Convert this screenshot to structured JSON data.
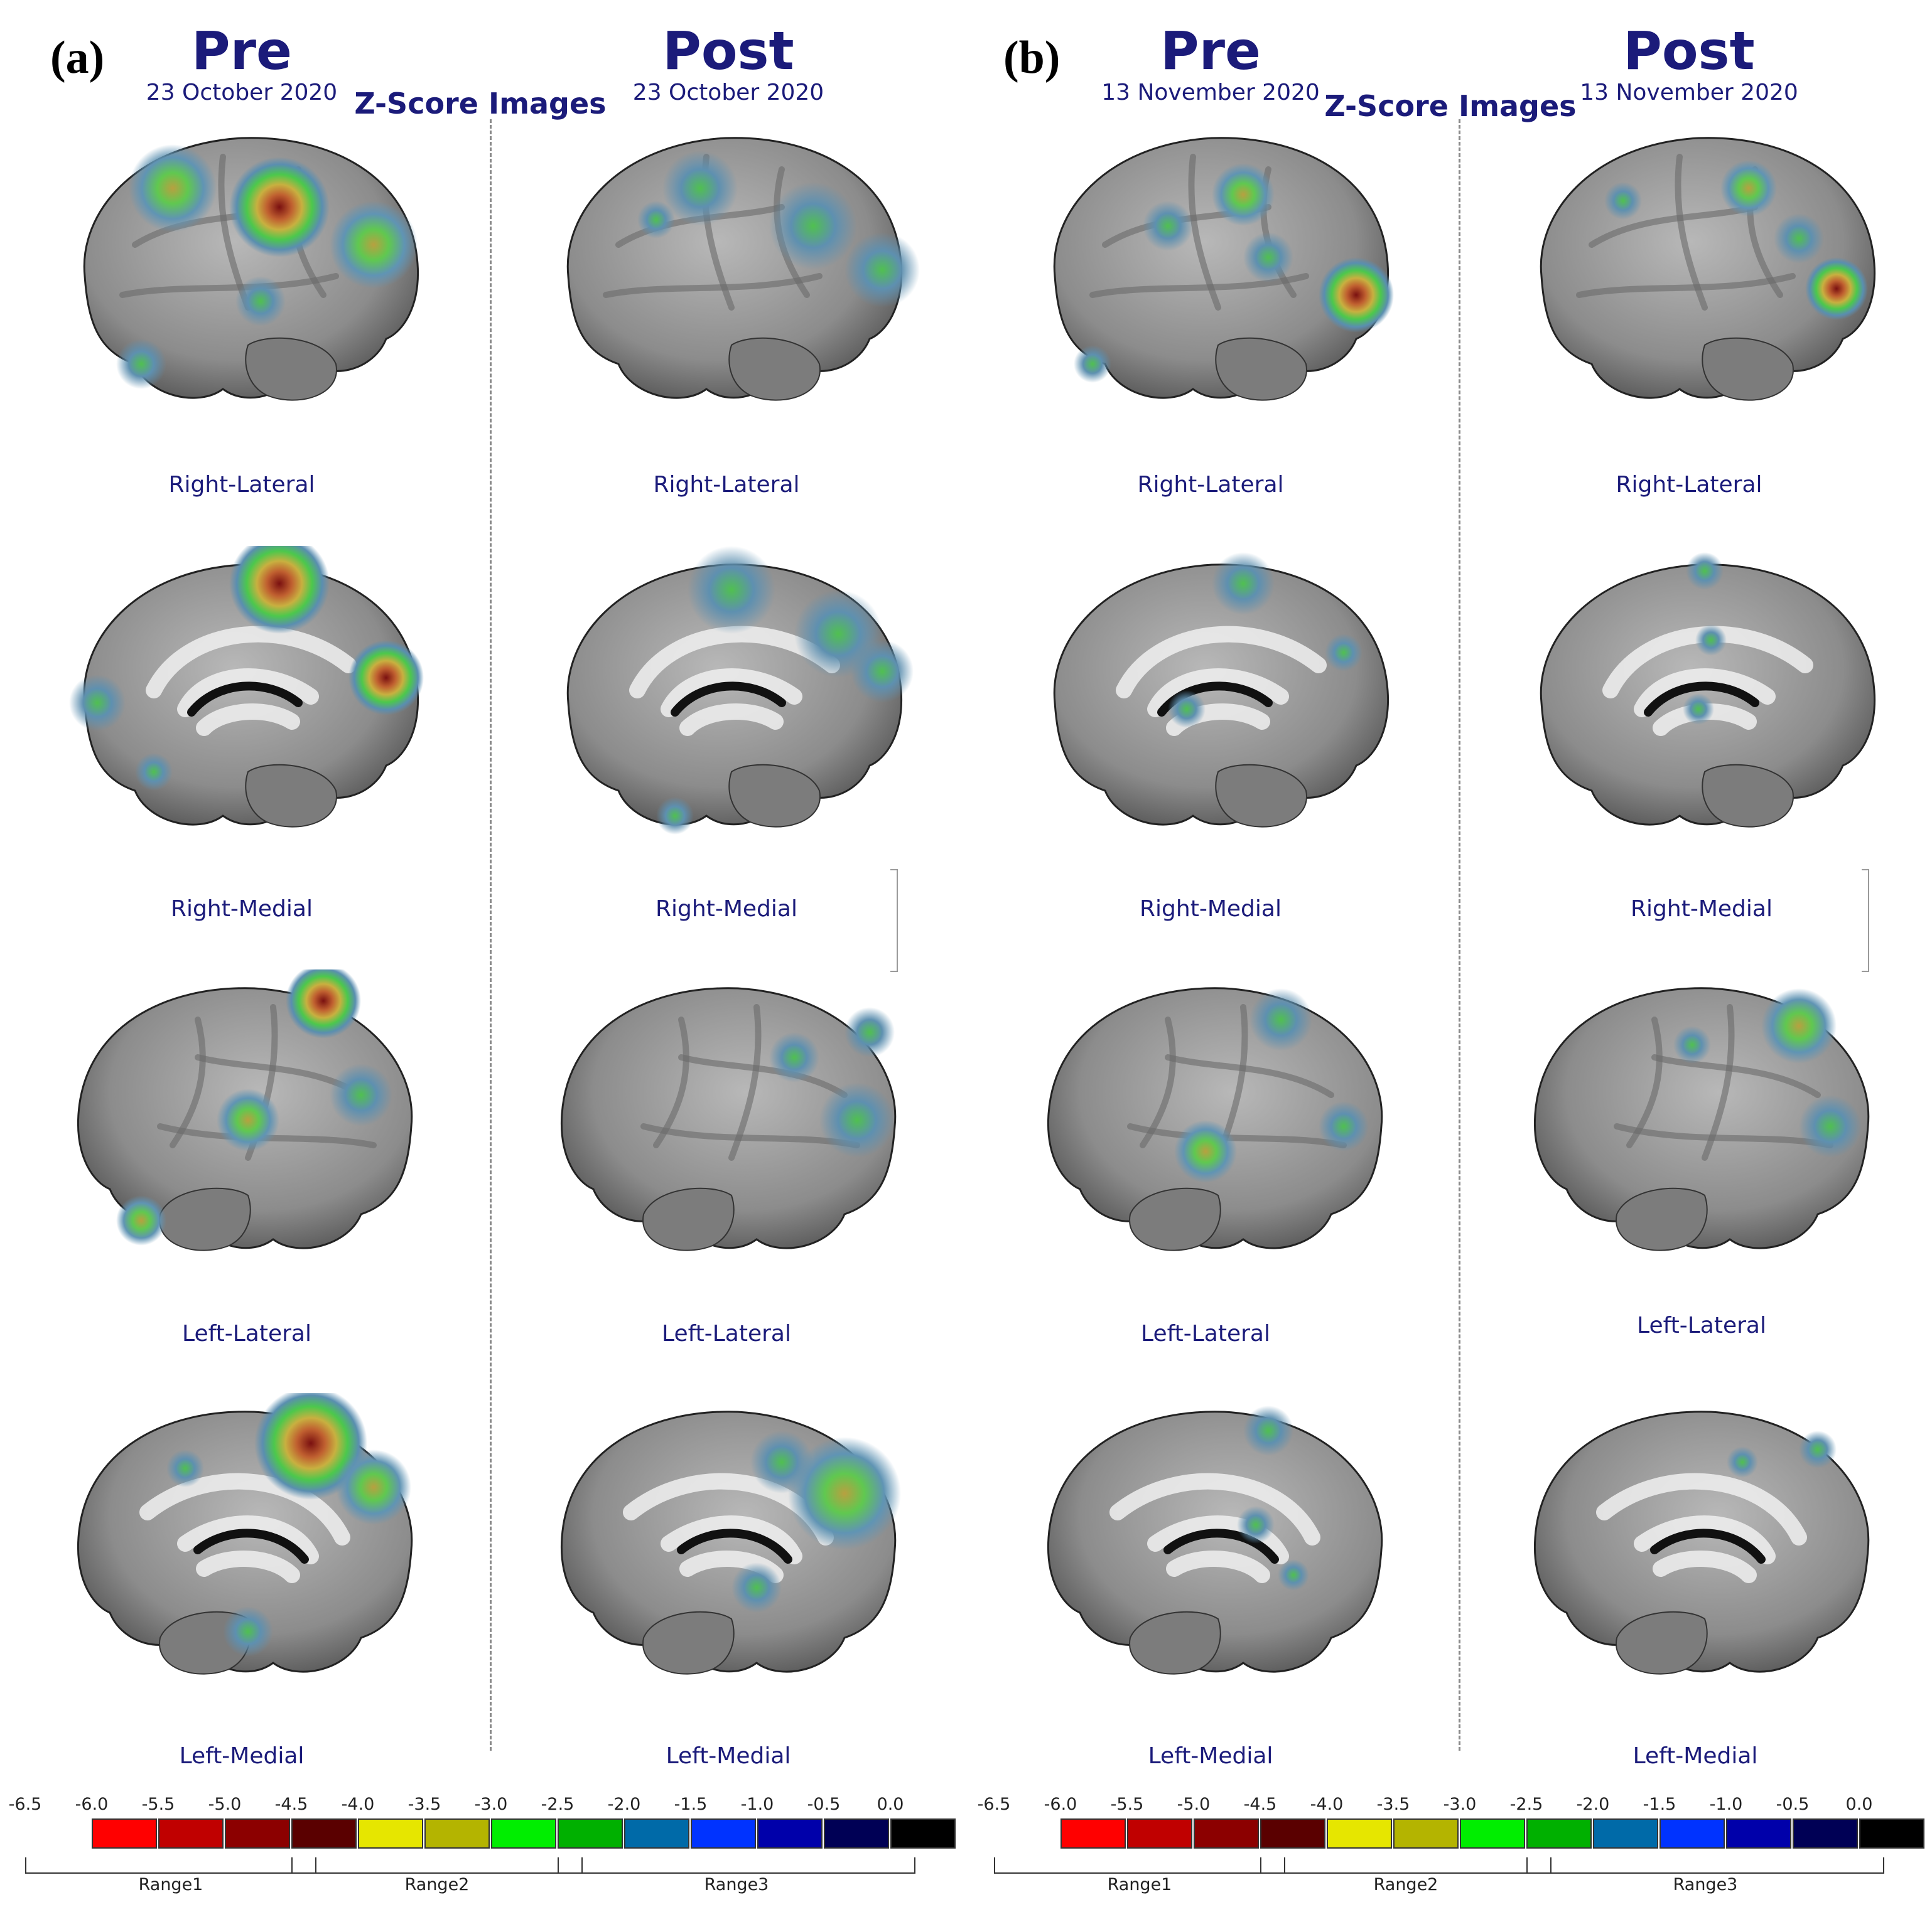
{
  "panels": [
    {
      "letter": "(a)",
      "pre": {
        "title": "Pre",
        "date": "23 October 2020"
      },
      "post": {
        "title": "Post",
        "date": "23 October 2020"
      },
      "center_title": "Z-Score Images",
      "pre_labels": [
        "Right-Lateral",
        "Right-Medial",
        "Left-Lateral",
        "Left-Medial"
      ],
      "post_labels": [
        "Right-Lateral",
        "Right-Medial",
        "Left-Lateral",
        "Left-Medial"
      ]
    },
    {
      "letter": "(b)",
      "pre": {
        "title": "Pre",
        "date": "13 November 2020"
      },
      "post": {
        "title": "Post",
        "date": "13 November 2020"
      },
      "center_title": "Z-Score Images",
      "pre_labels": [
        "Right-Lateral",
        "Right-Medial",
        "Left-Lateral",
        "Left-Medial"
      ],
      "post_labels": [
        "Right-Lateral",
        "Right-Medial",
        "Left-Lateral",
        "Left-Medial"
      ]
    }
  ],
  "colorbar": {
    "ticks": [
      "-6.5",
      "-6.0",
      "-5.5",
      "-5.0",
      "-4.5",
      "-4.0",
      "-3.5",
      "-3.0",
      "-2.5",
      "-2.0",
      "-1.5",
      "-1.0",
      "-0.5",
      "0.0"
    ],
    "colors": [
      "#ff0000",
      "#c00000",
      "#8c0000",
      "#5a0000",
      "#e6e600",
      "#b4b400",
      "#00ee00",
      "#00b000",
      "#006aa8",
      "#0033ff",
      "#0000aa",
      "#000055",
      "#000000"
    ],
    "ranges": [
      "Range1",
      "Range2",
      "Range3"
    ]
  }
}
